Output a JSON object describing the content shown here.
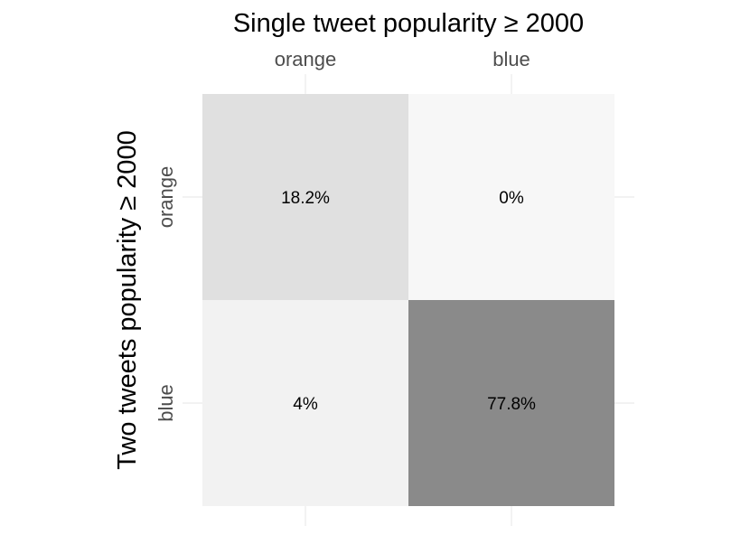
{
  "chart_data": {
    "type": "heatmap",
    "title": "",
    "xlabel": "Single tweet popularity ≥ 2000",
    "ylabel": "Two tweets popularity ≥ 2000",
    "x_categories": [
      "orange",
      "blue"
    ],
    "y_categories": [
      "orange",
      "blue"
    ],
    "x_axis_position": "top",
    "grid": true,
    "legend": "none",
    "cells": [
      {
        "x": "orange",
        "y": "orange",
        "value": 18.2,
        "label": "18.2%",
        "color": "#e0e0e0"
      },
      {
        "x": "blue",
        "y": "orange",
        "value": 0,
        "label": "0%",
        "color": "#f7f7f7"
      },
      {
        "x": "orange",
        "y": "blue",
        "value": 4,
        "label": "4%",
        "color": "#f2f2f2"
      },
      {
        "x": "blue",
        "y": "blue",
        "value": 77.8,
        "label": "77.8%",
        "color": "#8a8a8a"
      }
    ]
  }
}
